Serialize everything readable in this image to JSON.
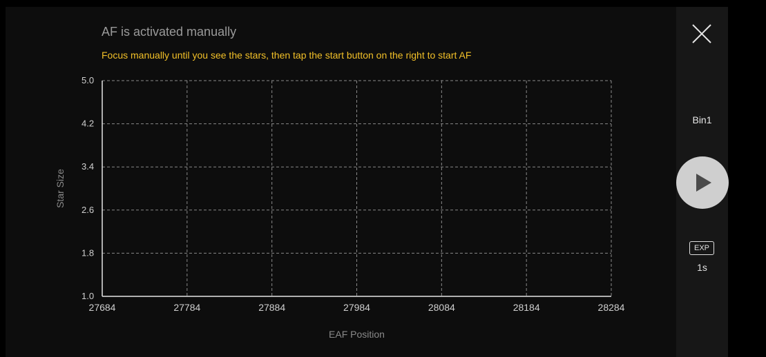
{
  "header": {
    "title": "AF is activated manually",
    "hint": "Focus manually until you see the stars, then tap the start button on the right to start AF"
  },
  "sidebar": {
    "close_icon": "close-icon",
    "bin_label": "Bin1",
    "play_icon": "play-icon",
    "exp_label": "EXP",
    "exp_value": "1s"
  },
  "colors": {
    "accent": "#f2c028",
    "title": "#9a9a9a",
    "grid": "#8a8a8a",
    "background": "#0d0d0d",
    "sidebar": "#171717"
  },
  "chart_data": {
    "type": "scatter",
    "title": "",
    "xlabel": "EAF Position",
    "ylabel": "Star Size",
    "xlim": [
      27684,
      28284
    ],
    "ylim": [
      1.0,
      5.0
    ],
    "x_ticks": [
      27684,
      27784,
      27884,
      27984,
      28084,
      28184,
      28284
    ],
    "x_tick_labels": [
      "27684",
      "27784",
      "27884",
      "27984",
      "28084",
      "28184",
      "28284"
    ],
    "y_ticks": [
      1.0,
      1.8,
      2.6,
      3.4,
      4.2,
      5.0
    ],
    "y_tick_labels": [
      "1.0",
      "1.8",
      "2.6",
      "3.4",
      "4.2",
      "5.0"
    ],
    "grid": true,
    "series": []
  }
}
